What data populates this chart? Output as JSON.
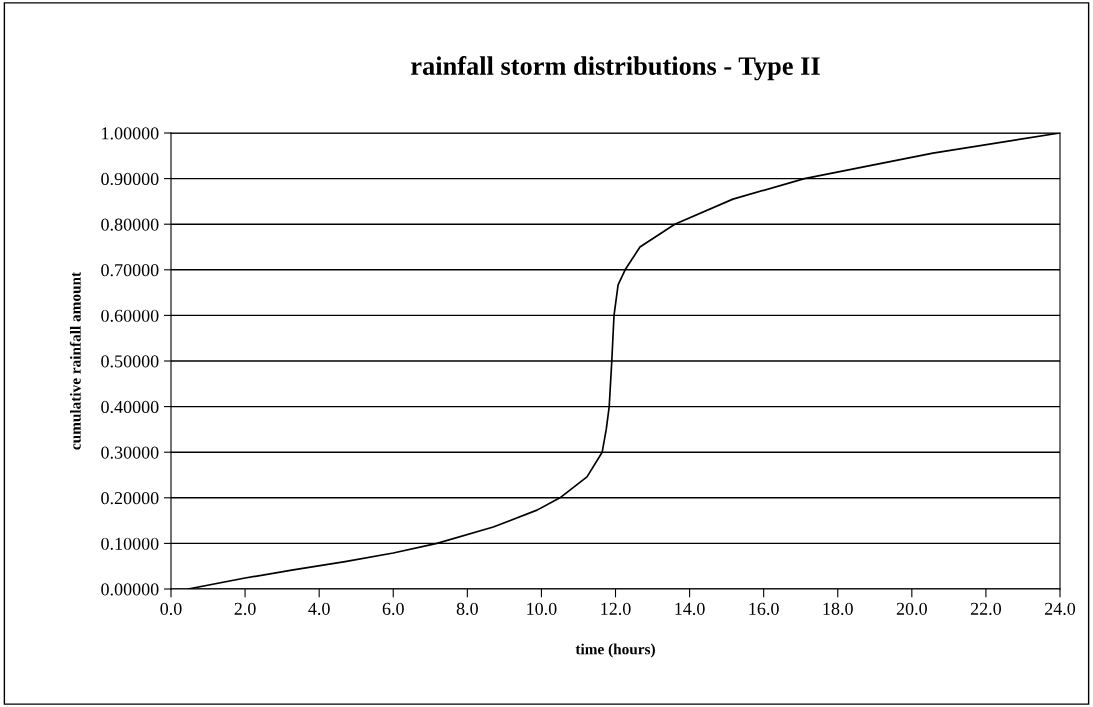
{
  "chart_data": {
    "type": "line",
    "title": "rainfall storm distributions - Type II",
    "xlabel": "time (hours)",
    "ylabel": "cumulative rainfall amount",
    "x": [
      0.46,
      2.0,
      3.3,
      4.7,
      6.0,
      7.18,
      8.7,
      9.88,
      10.5,
      11.23,
      11.64,
      11.75,
      11.83,
      11.9,
      11.96,
      12.07,
      12.26,
      12.66,
      13.6,
      15.17,
      17.1,
      20.57,
      24.0
    ],
    "series": [
      {
        "color": "#000000",
        "values": [
          0.0,
          0.024,
          0.042,
          0.06,
          0.079,
          0.1,
          0.136,
          0.173,
          0.2,
          0.246,
          0.3,
          0.35,
          0.4,
          0.5,
          0.6,
          0.667,
          0.7,
          0.75,
          0.8,
          0.855,
          0.9,
          0.956,
          1.0
        ]
      }
    ],
    "xlim": [
      0.0,
      24.0
    ],
    "ylim": [
      0.0,
      1.0
    ],
    "xticks": [
      {
        "value": 0,
        "label": "0.0"
      },
      {
        "value": 2,
        "label": "2.0"
      },
      {
        "value": 4,
        "label": "4.0"
      },
      {
        "value": 6,
        "label": "6.0"
      },
      {
        "value": 8,
        "label": "8.0"
      },
      {
        "value": 10,
        "label": "10.0"
      },
      {
        "value": 12,
        "label": "12.0"
      },
      {
        "value": 14,
        "label": "14.0"
      },
      {
        "value": 16,
        "label": "16.0"
      },
      {
        "value": 18,
        "label": "18.0"
      },
      {
        "value": 20,
        "label": "20.0"
      },
      {
        "value": 22,
        "label": "22.0"
      },
      {
        "value": 24,
        "label": "24.0"
      }
    ],
    "yticks": [
      {
        "value": 0,
        "label": "0.00000"
      },
      {
        "value": 0.1,
        "label": "0.10000"
      },
      {
        "value": 0.2,
        "label": "0.20000"
      },
      {
        "value": 0.3,
        "label": "0.30000"
      },
      {
        "value": 0.4,
        "label": "0.40000"
      },
      {
        "value": 0.5,
        "label": "0.50000"
      },
      {
        "value": 0.6,
        "label": "0.60000"
      },
      {
        "value": 0.7,
        "label": "0.70000"
      },
      {
        "value": 0.8,
        "label": "0.80000"
      },
      {
        "value": 0.9,
        "label": "0.90000"
      },
      {
        "value": 1.0,
        "label": "1.00000"
      }
    ],
    "grid": "y",
    "marker": "none",
    "line_style": "solid"
  }
}
